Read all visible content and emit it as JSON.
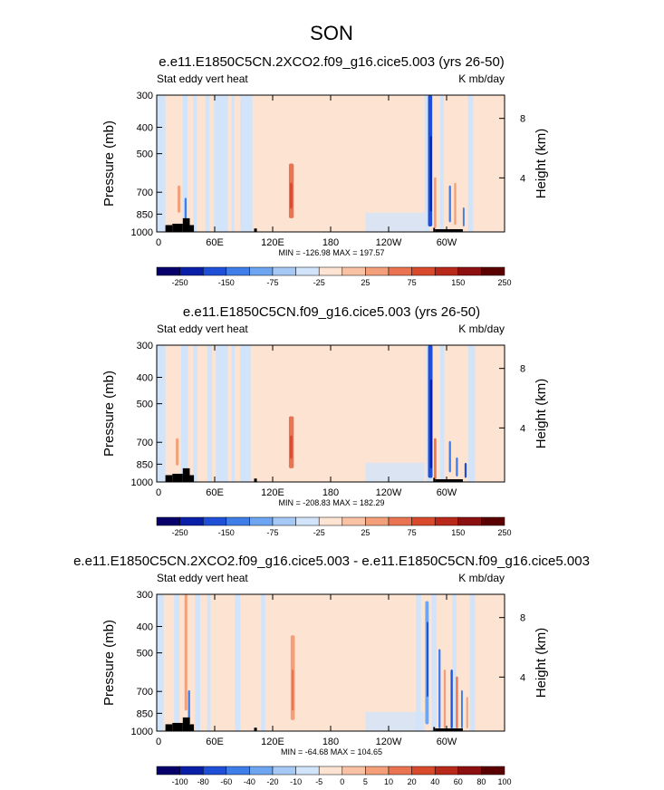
{
  "page": {
    "title": "SON"
  },
  "chart_data": [
    {
      "type": "heatmap",
      "title": "e.e11.E1850C5CN.2XCO2.f09_g16.cice5.003 (yrs 26-50)",
      "left_label": "Stat eddy vert heat",
      "right_label": "K mb/day",
      "ylabel": "Pressure (mb)",
      "ylabel_right": "Height (km)",
      "x_ticks": [
        "0",
        "60E",
        "120E",
        "180",
        "120W",
        "60W"
      ],
      "y_ticks": [
        "300",
        "400",
        "500",
        "700",
        "850",
        "1000"
      ],
      "y_ticks_right": [
        "8",
        "4"
      ],
      "stats": "MIN = -126.98  MAX = 197.57",
      "colorbar_labels": [
        "-250",
        "-150",
        "-75",
        "-25",
        "25",
        "75",
        "150",
        "250"
      ]
    },
    {
      "type": "heatmap",
      "title": "e.e11.E1850C5CN.f09_g16.cice5.003 (yrs 26-50)",
      "left_label": "Stat eddy vert heat",
      "right_label": "K mb/day",
      "ylabel": "Pressure (mb)",
      "ylabel_right": "Height (km)",
      "x_ticks": [
        "0",
        "60E",
        "120E",
        "180",
        "120W",
        "60W"
      ],
      "y_ticks": [
        "300",
        "400",
        "500",
        "700",
        "850",
        "1000"
      ],
      "y_ticks_right": [
        "8",
        "4"
      ],
      "stats": "MIN = -208.83  MAX = 182.29",
      "colorbar_labels": [
        "-250",
        "-150",
        "-75",
        "-25",
        "25",
        "75",
        "150",
        "250"
      ]
    },
    {
      "type": "heatmap",
      "title": "e.e11.E1850C5CN.2XCO2.f09_g16.cice5.003 - e.e11.E1850C5CN.f09_g16.cice5.003",
      "left_label": "Stat eddy vert heat",
      "right_label": "K mb/day",
      "ylabel": "Pressure (mb)",
      "ylabel_right": "Height (km)",
      "x_ticks": [
        "0",
        "60E",
        "120E",
        "180",
        "120W",
        "60W"
      ],
      "y_ticks": [
        "300",
        "400",
        "500",
        "700",
        "850",
        "1000"
      ],
      "y_ticks_right": [
        "8",
        "4"
      ],
      "stats": "MIN = -64.68  MAX = 104.65",
      "colorbar_labels": [
        "-100",
        "-80",
        "-60",
        "-40",
        "-20",
        "-10",
        "-5",
        "0",
        "5",
        "10",
        "20",
        "40",
        "60",
        "80",
        "100"
      ]
    }
  ],
  "colors": {
    "palette": [
      "#08006a",
      "#0a1fa8",
      "#1f4fd6",
      "#3f7ee8",
      "#6da5f0",
      "#a5c8f4",
      "#d2e4fa",
      "#fde3d2",
      "#f9c2a5",
      "#f3a07a",
      "#ea7452",
      "#d94a2c",
      "#b8291a",
      "#8c1010",
      "#5a0000"
    ],
    "warm_bg": "#fde3d2",
    "cool_bg": "#d2e4fa"
  }
}
